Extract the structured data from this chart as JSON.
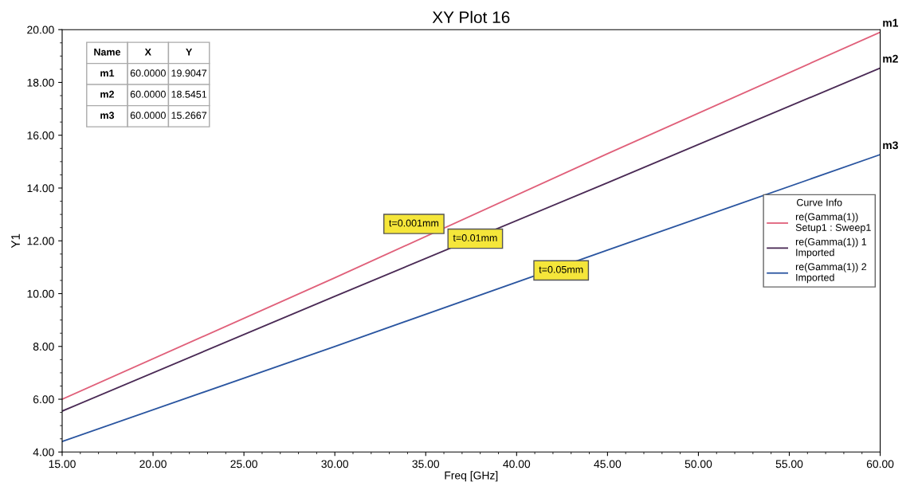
{
  "chart_data": {
    "type": "line",
    "title": "XY Plot 16",
    "xlabel": "Freq [GHz]",
    "ylabel": "Y1",
    "legend_title": "Curve Info",
    "x": [
      15,
      30,
      45,
      60
    ],
    "series": [
      {
        "name": "re(Gamma(1))\nSetup1 : Sweep1",
        "color": "#e0607a",
        "values": [
          6.0,
          10.6,
          15.3,
          19.9047
        ]
      },
      {
        "name": "re(Gamma(1)) 1\nImported",
        "color": "#4a2a55",
        "values": [
          5.55,
          9.9,
          14.2,
          18.5451
        ]
      },
      {
        "name": "re(Gamma(1)) 2\nImported",
        "color": "#2a55a0",
        "values": [
          4.4,
          8.0,
          11.65,
          15.2667
        ]
      }
    ],
    "annotations": [
      "t=0.001mm",
      "t=0.01mm",
      "t=0.05mm",
      "m1",
      "m2",
      "m3",
      "Name",
      "X",
      "Y",
      "m1",
      "60.0000",
      "19.9047",
      "m2",
      "60.0000",
      "18.5451",
      "m3",
      "60.0000",
      "15.2667"
    ],
    "xlim": [
      15,
      60
    ],
    "xticks": [
      {
        "value": 15,
        "label": "15.00"
      },
      {
        "value": 20,
        "label": "20.00"
      },
      {
        "value": 25,
        "label": "25.00"
      },
      {
        "value": 30,
        "label": "30.00"
      },
      {
        "value": 35,
        "label": "35.00"
      },
      {
        "value": 40,
        "label": "40.00"
      },
      {
        "value": 45,
        "label": "45.00"
      },
      {
        "value": 50,
        "label": "50.00"
      },
      {
        "value": 55,
        "label": "55.00"
      },
      {
        "value": 60,
        "label": "60.00"
      }
    ],
    "ylim": [
      4,
      20
    ],
    "yticks": [
      {
        "value": 4,
        "label": "4.00"
      },
      {
        "value": 6,
        "label": "6.00"
      },
      {
        "value": 8,
        "label": "8.00"
      },
      {
        "value": 10,
        "label": "10.00"
      },
      {
        "value": 12,
        "label": "12.00"
      },
      {
        "value": 14,
        "label": "14.00"
      },
      {
        "value": 16,
        "label": "16.00"
      },
      {
        "value": 18,
        "label": "18.00"
      },
      {
        "value": 20,
        "label": "20.00"
      }
    ],
    "grid": false,
    "legend": "right",
    "marker": "none",
    "line_style": "solid"
  }
}
